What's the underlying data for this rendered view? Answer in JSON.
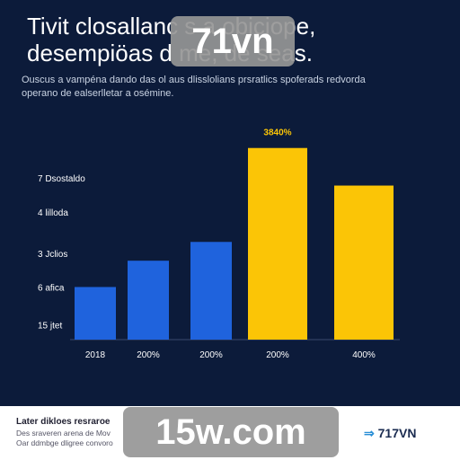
{
  "header": {
    "title": "Tivit closallanc s a obiciope,\ndesempiöas d me, de seas.",
    "subtitle": "Ouscus a vampéna dando das ol aus dlisslolians prsratlics spoferads redvorda\noperano de ealserlletar a osémine."
  },
  "watermarks": {
    "top": "71vn",
    "bottom": "15w.com"
  },
  "footer": {
    "title": "Later dikloes resraroe",
    "text": "Des sraveren arena de Mov\nOar ddmbge dligree convoro",
    "logo": "717VN"
  },
  "colors": {
    "background": "#0c1b3a",
    "blue": "#1f63dd",
    "yellow": "#fbc506"
  },
  "chart_data": {
    "type": "bar",
    "categories": [
      "2018",
      "200%",
      "200%",
      "200%",
      "400%"
    ],
    "values": [
      1.4,
      2.1,
      2.6,
      5.1,
      4.1
    ],
    "bar_colors": [
      "#1f63dd",
      "#1f63dd",
      "#1f63dd",
      "#fbc506",
      "#fbc506"
    ],
    "ylim": [
      0,
      5.5
    ],
    "yticks": [
      {
        "label": "7 Dsostaldo",
        "value": 4.3
      },
      {
        "label": "4 lilloda",
        "value": 3.4
      },
      {
        "label": "3 Jclios",
        "value": 2.3
      },
      {
        "label": "6 afica",
        "value": 1.4
      },
      {
        "label": "15 jtet",
        "value": 0.4
      }
    ],
    "annotations": [
      {
        "bar": 3,
        "text": "3840%"
      }
    ],
    "grid": false
  }
}
